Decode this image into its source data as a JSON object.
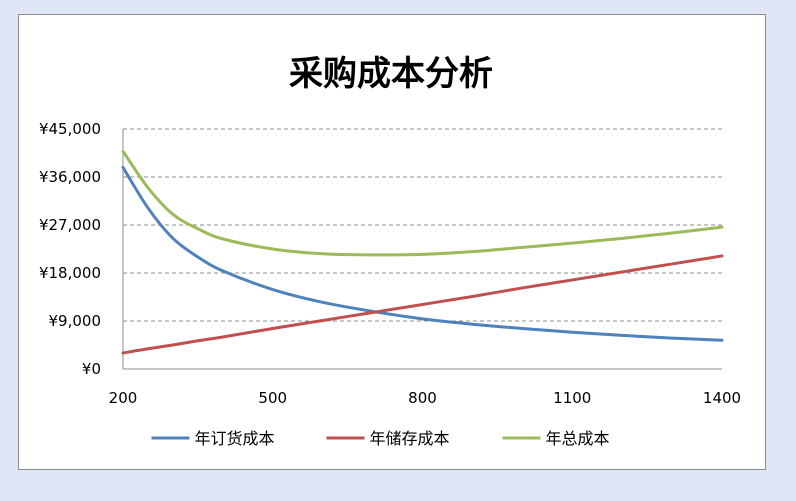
{
  "chart_data": {
    "type": "line",
    "title": "采购成本分析",
    "xlabel": "",
    "ylabel": "",
    "x_ticks": [
      "200",
      "500",
      "800",
      "1100",
      "1400"
    ],
    "y_ticks": [
      "¥0",
      "¥9,000",
      "¥18,000",
      "¥27,000",
      "¥36,000",
      "¥45,000"
    ],
    "xlim": [
      200,
      1400
    ],
    "ylim": [
      0,
      45000
    ],
    "grid": true,
    "legend_position": "bottom",
    "x": [
      200,
      250,
      300,
      350,
      400,
      500,
      600,
      700,
      800,
      900,
      1000,
      1100,
      1200,
      1300,
      1400
    ],
    "series": [
      {
        "name": "年订货成本",
        "color": "#4f81bd",
        "values": [
          37800,
          30200,
          24500,
          21000,
          18400,
          14900,
          12500,
          10800,
          9400,
          8400,
          7600,
          6900,
          6300,
          5800,
          5400
        ]
      },
      {
        "name": "年储存成本",
        "color": "#c0504d",
        "values": [
          3000,
          3800,
          4500,
          5300,
          6000,
          7600,
          9100,
          10600,
          12100,
          13600,
          15200,
          16700,
          18200,
          19700,
          21200
        ]
      },
      {
        "name": "年总成本",
        "color": "#9bbb59",
        "values": [
          40800,
          34000,
          29000,
          26300,
          24400,
          22500,
          21600,
          21400,
          21500,
          22000,
          22800,
          23600,
          24500,
          25500,
          26600
        ]
      }
    ]
  }
}
